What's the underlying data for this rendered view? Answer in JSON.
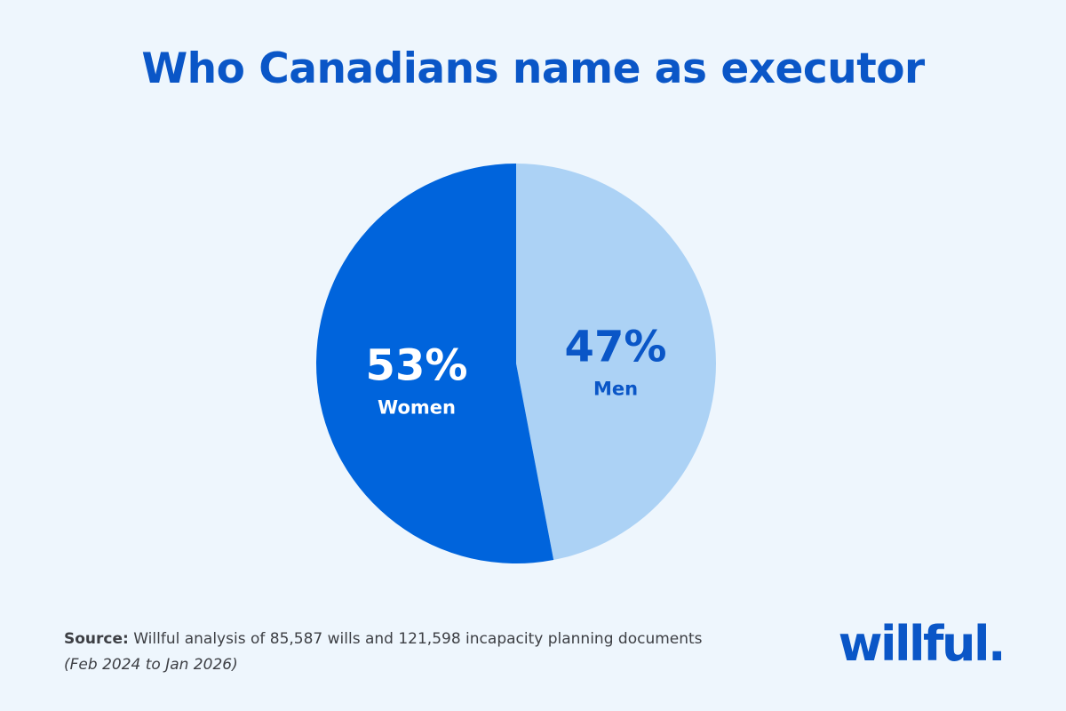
{
  "title": "Who Canadians name as executor",
  "chart_data": {
    "type": "pie",
    "title": "Who Canadians name as executor",
    "slices": [
      {
        "label": "Women",
        "value": 53,
        "value_label": "53%",
        "color": "#0064dc",
        "text_color": "#ffffff"
      },
      {
        "label": "Men",
        "value": 47,
        "value_label": "47%",
        "color": "#acd2f5",
        "text_color": "#0a56c7"
      }
    ],
    "legend": "none"
  },
  "source": {
    "key": "Source:",
    "text": "Willful analysis of 85,587 wills and 121,598 incapacity planning documents",
    "period": "(Feb 2024 to Jan 2026)"
  },
  "brand": {
    "logo": "willful."
  },
  "colors": {
    "background": "#eef6fd",
    "accent": "#0a56c7"
  }
}
